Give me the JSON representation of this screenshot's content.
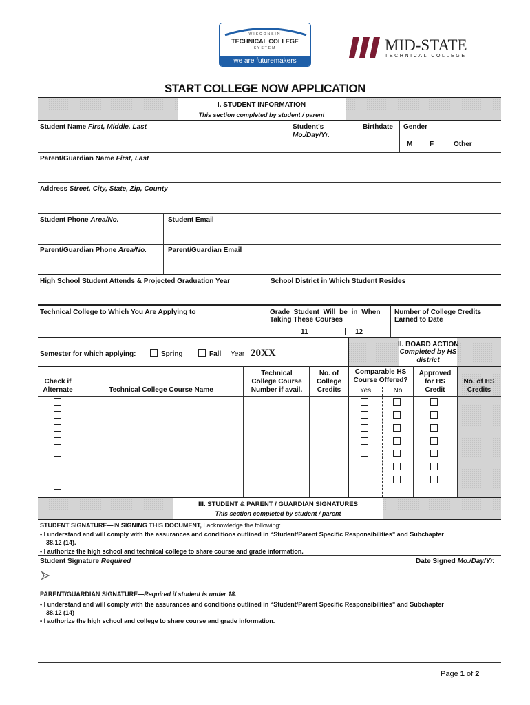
{
  "logos": {
    "wtcs": {
      "line1": "WISCONSIN",
      "line2": "TECHNICAL COLLEGE",
      "line3": "SYSTEM",
      "tagline": "we are futuremakers",
      "color": "#1f5fa8"
    },
    "midstate": {
      "name": "MID-STATE",
      "sub": "TECHNICAL COLLEGE",
      "color": "#7a1b32"
    }
  },
  "title": "START COLLEGE NOW APPLICATION",
  "section1": {
    "heading": "I. STUDENT INFORMATION",
    "sub": "This section completed by student / parent"
  },
  "fields": {
    "student_name": "Student Name",
    "student_name_i": "First, Middle, Last",
    "students": "Student's",
    "mdy": "Mo./Day/Yr.",
    "birthdate": "Birthdate",
    "gender": "Gender",
    "gender_m": "M",
    "gender_f": "F",
    "gender_other": "Other",
    "parent_name": "Parent/Guardian Name",
    "parent_name_i": "First, Last",
    "address": "Address",
    "address_i": "Street, City, State, Zip, County",
    "student_phone": "Student Phone",
    "student_phone_i": "Area/No.",
    "student_email": "Student Email",
    "parent_phone": "Parent/Guardian Phone",
    "parent_phone_i": "Area/No.",
    "parent_email": "Parent/Guardian Email",
    "high_school": "High School Student Attends & Projected Graduation Year",
    "district": "School District in Which Student Resides",
    "tech_college": "Technical College to Which You Are Applying to",
    "grade_l1": "Grade Student Will be in When",
    "grade_l2": "Taking These Courses",
    "grade_11": "11",
    "grade_12": "12",
    "credits_l1": "Number of College Credits",
    "credits_l2": "Earned to Date",
    "semester": "Semester for which applying:",
    "spring": "Spring",
    "fall": "Fall",
    "year_label": "Year",
    "year_value": "20XX"
  },
  "section2": {
    "l1": "II. BOARD ACTION",
    "l2": "Completed by HS",
    "l3": "district"
  },
  "course_table": {
    "alt": [
      "Check if",
      "Alternate"
    ],
    "name": "Technical College Course Name",
    "number": [
      "Technical",
      "College Course",
      "Number if avail."
    ],
    "credits": [
      "No. of",
      "College",
      "Credits"
    ],
    "comparable": [
      "Comparable HS",
      "Course Offered?"
    ],
    "yes": "Yes",
    "no": "No",
    "approved": [
      "Approved",
      "for HS",
      "Credit"
    ],
    "hs_credits": [
      "No. of HS",
      "Credits"
    ]
  },
  "section3": {
    "heading": "III. STUDENT & PARENT / GUARDIAN SIGNATURES",
    "sub": "This section completed by student / parent"
  },
  "student_sig": {
    "head": "STUDENT SIGNATURE—IN SIGNING THIS DOCUMENT,",
    "head2": " I acknowledge the following:",
    "b1": "• I understand and will comply with the assurances and conditions outlined in “Student/Parent Specific Responsibilities” and Subchapter",
    "b1b": "38.12 (14).",
    "b2": "• I authorize the high school and technical college to share course and grade information.",
    "label": "Student Signature",
    "label_i": "Required",
    "date": "Date Signed",
    "date_i": "Mo./Day/Yr."
  },
  "parent_sig": {
    "head": "PARENT/GUARDIAN SIGNATURE—",
    "head_i": "Required if student is under 18.",
    "b1": "• I understand and will comply with the assurances and conditions outlined in “Student/Parent Specific Responsibilities” and Subchapter",
    "b1b": "38.12 (14)",
    "b2": "• I authorize the high school and college to share course and grade information."
  },
  "footer": {
    "page": "Page",
    "num": "1",
    "of": "of",
    "total": "2"
  }
}
